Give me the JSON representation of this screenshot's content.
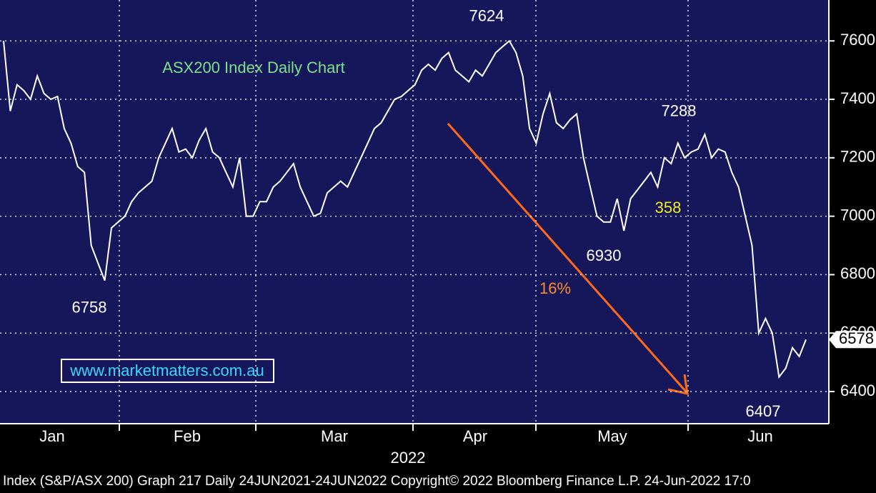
{
  "chart_data": {
    "type": "line",
    "title": "ASX200 Index Daily Chart",
    "watermark": "www.marketmatters.com.au",
    "x_label": "2022",
    "footer": "Index (S&P/ASX 200) Graph 217  Daily 24JUN2021-24JUN2022   Copyright© 2022 Bloomberg Finance L.P.  24-Jun-2022 17:0",
    "months": [
      "Jan",
      "Feb",
      "Mar",
      "Apr",
      "May",
      "Jun"
    ],
    "series": [
      {
        "name": "ASX200",
        "color": "#ffffff",
        "values": [
          7600,
          7360,
          7450,
          7430,
          7400,
          7480,
          7420,
          7400,
          7410,
          7300,
          7250,
          7170,
          7150,
          6900,
          6840,
          6780,
          6960,
          6980,
          7000,
          7050,
          7080,
          7100,
          7120,
          7200,
          7250,
          7300,
          7220,
          7230,
          7200,
          7260,
          7300,
          7220,
          7200,
          7150,
          7100,
          7200,
          7000,
          7000,
          7050,
          7050,
          7100,
          7120,
          7150,
          7180,
          7100,
          7050,
          7000,
          7010,
          7080,
          7100,
          7120,
          7100,
          7150,
          7200,
          7250,
          7300,
          7320,
          7360,
          7400,
          7410,
          7430,
          7450,
          7500,
          7520,
          7500,
          7540,
          7560,
          7500,
          7480,
          7460,
          7500,
          7480,
          7520,
          7560,
          7580,
          7600,
          7560,
          7480,
          7300,
          7250,
          7350,
          7420,
          7320,
          7300,
          7330,
          7350,
          7200,
          7100,
          7000,
          6980,
          6980,
          7060,
          6950,
          7060,
          7090,
          7120,
          7150,
          7100,
          7200,
          7180,
          7250,
          7200,
          7220,
          7230,
          7280,
          7200,
          7230,
          7220,
          7150,
          7100,
          7000,
          6900,
          6600,
          6650,
          6600,
          6450,
          6480,
          6550,
          6520,
          6578
        ]
      }
    ],
    "last_price": 6578,
    "annotations": [
      7624,
      6758,
      6930,
      7288,
      6407
    ],
    "notes": [
      "16%",
      "358"
    ],
    "ylim": [
      6290,
      7740
    ],
    "yticks": [
      6400,
      6600,
      6800,
      7000,
      7200,
      7400,
      7600
    ],
    "grid": true
  }
}
